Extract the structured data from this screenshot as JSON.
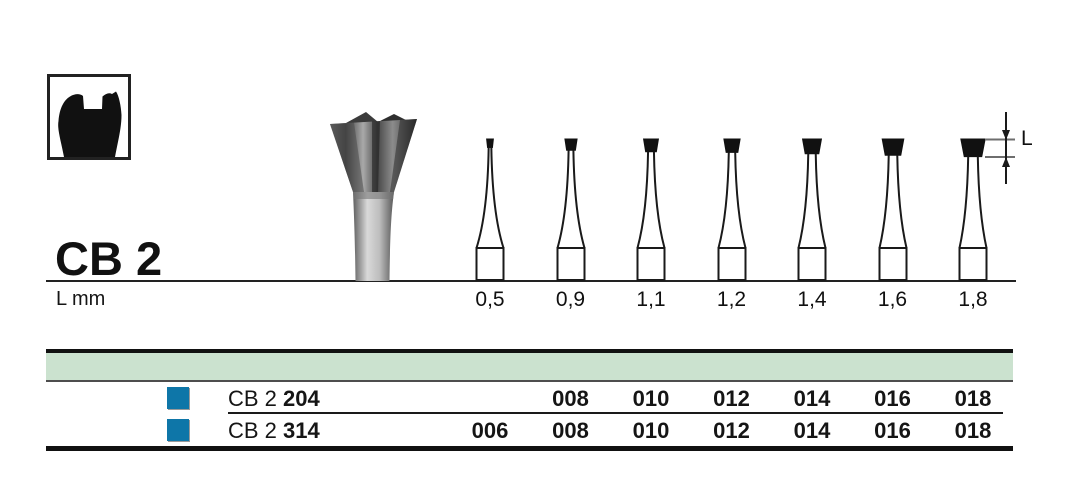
{
  "page": {
    "product_code": "CB 2",
    "unit_label": "L mm",
    "dimension_label": "L"
  },
  "figure": {
    "type": "bur-size-diagram",
    "sizes": [
      {
        "label": "0,5",
        "mm": 0.5
      },
      {
        "label": "0,9",
        "mm": 0.9
      },
      {
        "label": "1,1",
        "mm": 1.1
      },
      {
        "label": "1,2",
        "mm": 1.2
      },
      {
        "label": "1,4",
        "mm": 1.4
      },
      {
        "label": "1,6",
        "mm": 1.6
      },
      {
        "label": "1,8",
        "mm": 1.8
      }
    ]
  },
  "table": {
    "rows": [
      {
        "series_prefix": "CB 2",
        "shank_code": "204",
        "values": [
          "",
          "008",
          "010",
          "012",
          "014",
          "016",
          "018"
        ]
      },
      {
        "series_prefix": "CB 2",
        "shank_code": "314",
        "values": [
          "006",
          "008",
          "010",
          "012",
          "014",
          "016",
          "018"
        ]
      }
    ]
  },
  "colors": {
    "band_green": "#cbe2cf",
    "swatch_blue": "#0e76a8",
    "ink": "#1a1a1a"
  }
}
